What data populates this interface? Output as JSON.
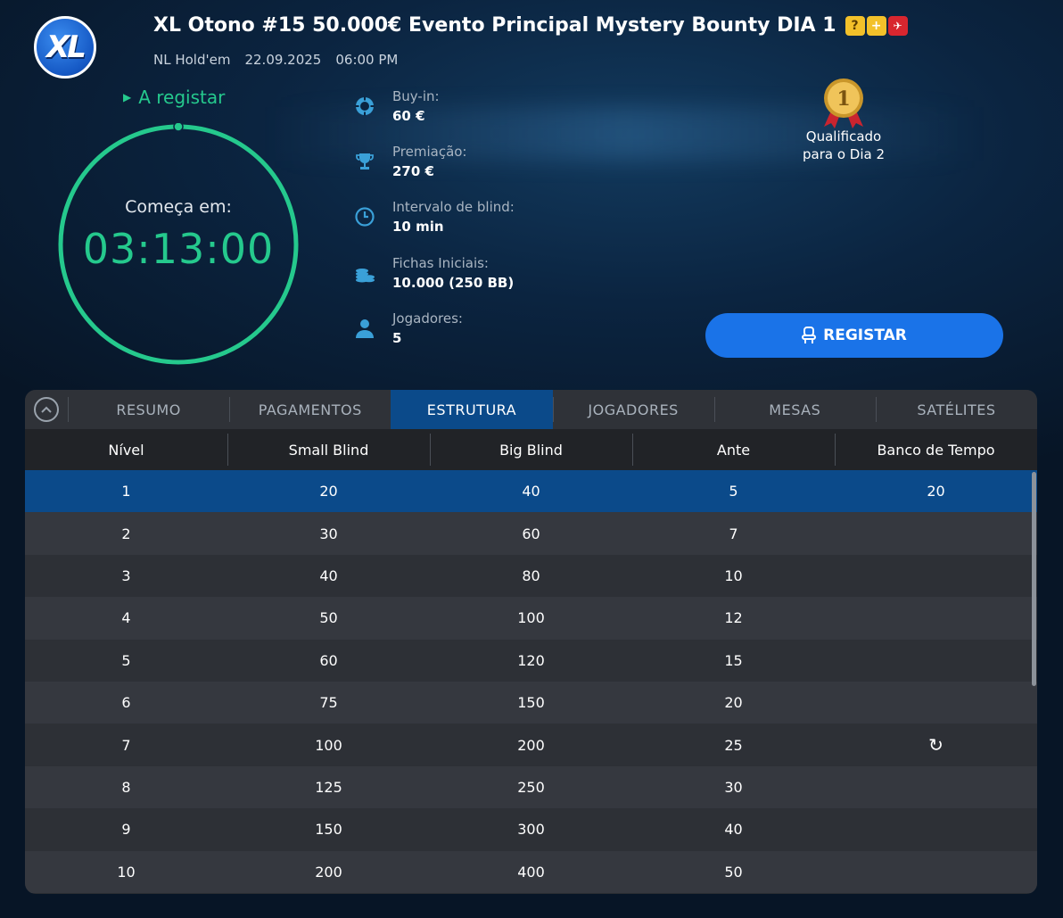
{
  "header": {
    "logo_text": "XL",
    "title": "XL Otono #15 50.000€ Evento Principal Mystery Bounty DIA 1",
    "badges": [
      "?",
      "+",
      "✈"
    ],
    "game": "NL Hold'em",
    "date": "22.09.2025",
    "time": "06:00 PM"
  },
  "status": {
    "label": "A registar",
    "countdown_label": "Começa em:",
    "countdown": "03:13:00"
  },
  "info": [
    {
      "icon": "poker-chip-icon",
      "label": "Buy-in:",
      "value": "60 €"
    },
    {
      "icon": "trophy-icon",
      "label": "Premiação:",
      "value": "270 €"
    },
    {
      "icon": "clock-icon",
      "label": "Intervalo de blind:",
      "value": "10 min"
    },
    {
      "icon": "chip-stack-icon",
      "label": "Fichas Iniciais:",
      "value": "10.000 (250 BB)"
    },
    {
      "icon": "player-icon",
      "label": "Jogadores:",
      "value": "5"
    }
  ],
  "medal": {
    "number": "1",
    "text_line1": "Qualificado",
    "text_line2": "para o Dia 2"
  },
  "register_button": {
    "label": "REGISTAR"
  },
  "tabs": [
    {
      "label": "RESUMO",
      "active": false
    },
    {
      "label": "PAGAMENTOS",
      "active": false
    },
    {
      "label": "ESTRUTURA",
      "active": true
    },
    {
      "label": "JOGADORES",
      "active": false
    },
    {
      "label": "MESAS",
      "active": false
    },
    {
      "label": "SATÉLITES",
      "active": false
    }
  ],
  "table": {
    "columns": [
      "Nível",
      "Small Blind",
      "Big Blind",
      "Ante",
      "Banco de Tempo"
    ],
    "rows": [
      [
        "1",
        "20",
        "40",
        "5",
        "20"
      ],
      [
        "2",
        "30",
        "60",
        "7",
        ""
      ],
      [
        "3",
        "40",
        "80",
        "10",
        ""
      ],
      [
        "4",
        "50",
        "100",
        "12",
        ""
      ],
      [
        "5",
        "60",
        "120",
        "15",
        ""
      ],
      [
        "6",
        "75",
        "150",
        "20",
        ""
      ],
      [
        "7",
        "100",
        "200",
        "25",
        "↻"
      ],
      [
        "8",
        "125",
        "250",
        "30",
        ""
      ],
      [
        "9",
        "150",
        "300",
        "40",
        ""
      ],
      [
        "10",
        "200",
        "400",
        "50",
        ""
      ]
    ],
    "selected_row": 0
  },
  "colors": {
    "accent_green": "#25c98d",
    "button_blue": "#1a73e8",
    "active_blue": "#0b4a8a"
  }
}
